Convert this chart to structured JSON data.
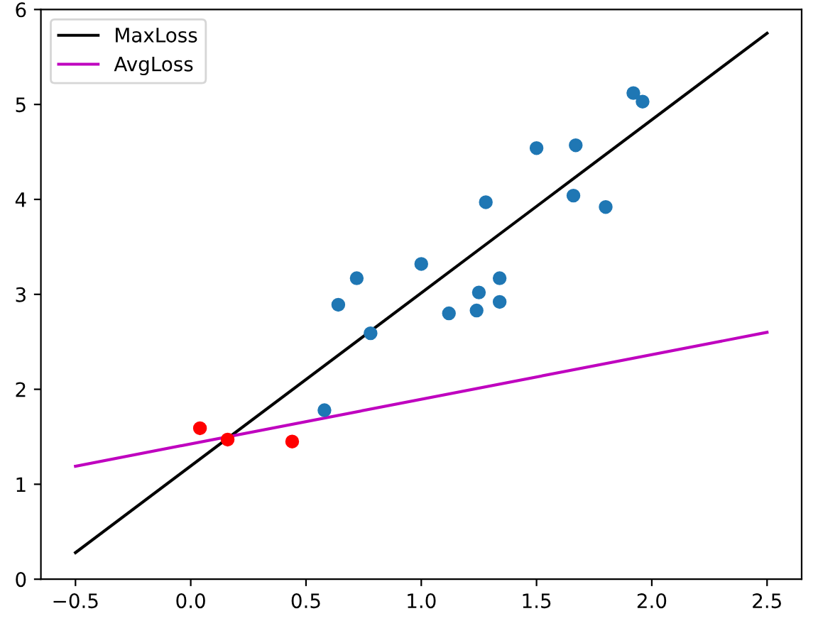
{
  "chart_data": {
    "type": "scatter",
    "series": [
      {
        "marker": "circle",
        "color": "#1f77b4",
        "x": [
          0.58,
          0.64,
          0.72,
          0.78,
          1.0,
          1.12,
          1.24,
          1.25,
          1.28,
          1.34,
          1.34,
          1.5,
          1.66,
          1.67,
          1.8,
          1.92,
          1.96
        ],
        "values": [
          1.78,
          2.89,
          3.17,
          2.59,
          3.32,
          2.8,
          2.83,
          3.02,
          3.97,
          3.17,
          2.92,
          4.54,
          4.04,
          4.57,
          3.92,
          5.12,
          5.03
        ]
      },
      {
        "marker": "circle",
        "color": "#ff0000",
        "x": [
          0.04,
          0.16,
          0.44
        ],
        "values": [
          1.59,
          1.47,
          1.45
        ]
      },
      {
        "type": "line",
        "name": "MaxLoss",
        "color": "#000000",
        "x": [
          -0.5,
          2.5
        ],
        "values": [
          0.28,
          5.75
        ]
      },
      {
        "type": "line",
        "name": "AvgLoss",
        "color": "#bf00bf",
        "x": [
          -0.5,
          2.5
        ],
        "values": [
          1.19,
          2.6
        ]
      }
    ],
    "xlim": [
      -0.65,
      2.65
    ],
    "xticks": [
      {
        "value": -0.5,
        "label": "−0.5"
      },
      {
        "value": 0.0,
        "label": "0.0"
      },
      {
        "value": 0.5,
        "label": "0.5"
      },
      {
        "value": 1.0,
        "label": "1.0"
      },
      {
        "value": 1.5,
        "label": "1.5"
      },
      {
        "value": 2.0,
        "label": "2.0"
      },
      {
        "value": 2.5,
        "label": "2.5"
      }
    ],
    "ylim": [
      0,
      6
    ],
    "yticks": [
      0,
      1,
      2,
      3,
      4,
      5,
      6
    ],
    "legend": "top left"
  }
}
